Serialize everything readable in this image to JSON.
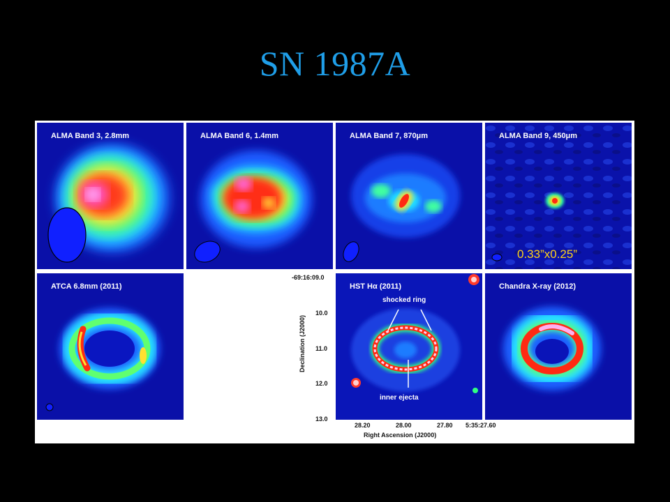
{
  "slide": {
    "title": "SN 1987A"
  },
  "panels": [
    {
      "label": "ALMA Band 3, 2.8mm"
    },
    {
      "label": "ALMA Band 6, 1.4mm"
    },
    {
      "label": "ALMA Band 7, 870μm"
    },
    {
      "label": "ALMA Band 9, 450μm"
    },
    {
      "label": "ATCA 6.8mm (2011)"
    },
    {
      "label": "HST Hα (2011)"
    },
    {
      "label": "Chandra X-ray (2012)"
    }
  ],
  "beam_size": "0.33”x0.25”",
  "hst_annotations": {
    "ring": "shocked ring",
    "ejecta": "inner ejecta"
  },
  "axes": {
    "ylabel": "Declination (J2000)",
    "xlabel": "Right Ascension (J2000)",
    "yticks": [
      "-69:16:09.0",
      "10.0",
      "11.0",
      "12.0",
      "13.0"
    ],
    "xticks": [
      "28.20",
      "28.00",
      "27.80",
      "5:35:27.60"
    ]
  },
  "colors": {
    "title": "#1f9ee8",
    "background": "#000000",
    "beam": "#1020ff",
    "beam_label": "#ffd21a"
  }
}
